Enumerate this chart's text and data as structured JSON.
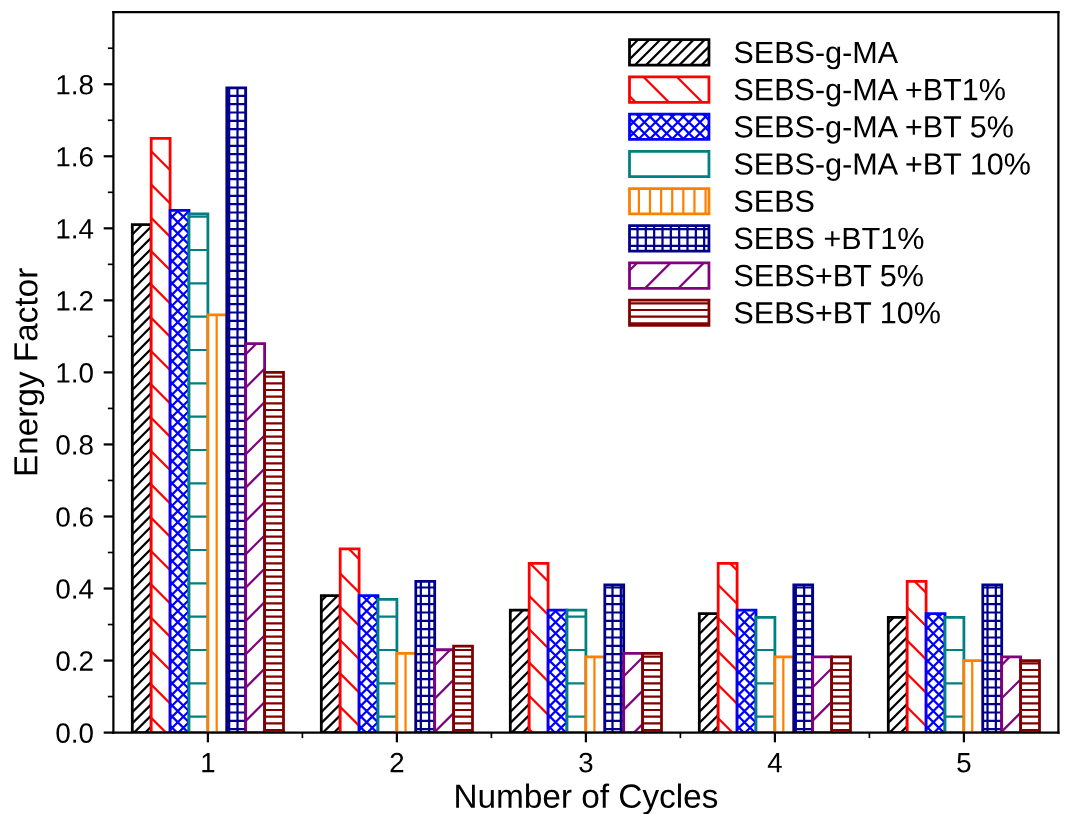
{
  "chart_data": {
    "type": "bar",
    "xlabel": "Number of Cycles",
    "ylabel": "Energy Factor",
    "categories": [
      "1",
      "2",
      "3",
      "4",
      "5"
    ],
    "series": [
      {
        "name": "SEBS-g-MA",
        "color": "#000000",
        "values": [
          1.41,
          0.38,
          0.34,
          0.33,
          0.32
        ]
      },
      {
        "name": "SEBS-g-MA +BT1%",
        "color": "#ff0000",
        "values": [
          1.65,
          0.51,
          0.47,
          0.47,
          0.42
        ]
      },
      {
        "name": "SEBS-g-MA +BT 5%",
        "color": "#0000ff",
        "values": [
          1.45,
          0.38,
          0.34,
          0.34,
          0.33
        ]
      },
      {
        "name": "SEBS-g-MA +BT 10%",
        "color": "#008080",
        "values": [
          1.44,
          0.37,
          0.34,
          0.32,
          0.32
        ]
      },
      {
        "name": "SEBS",
        "color": "#ff8000",
        "values": [
          1.16,
          0.22,
          0.21,
          0.21,
          0.2
        ]
      },
      {
        "name": "SEBS +BT1%",
        "color": "#00008b",
        "values": [
          1.79,
          0.42,
          0.41,
          0.41,
          0.41
        ]
      },
      {
        "name": "SEBS+BT 5%",
        "color": "#800080",
        "values": [
          1.08,
          0.23,
          0.22,
          0.21,
          0.21
        ]
      },
      {
        "name": "SEBS+BT 10%",
        "color": "#800000",
        "values": [
          1.0,
          0.24,
          0.22,
          0.21,
          0.2
        ]
      }
    ],
    "ylim": [
      0,
      2.0
    ],
    "yticks": [
      {
        "value": 0,
        "label": "0.0"
      },
      {
        "value": 0.2,
        "label": "0.2"
      },
      {
        "value": 0.4,
        "label": "0.4"
      },
      {
        "value": 0.6,
        "label": "0.6"
      },
      {
        "value": 0.8,
        "label": "0.8"
      },
      {
        "value": 1.0,
        "label": "1.0"
      },
      {
        "value": 1.2,
        "label": "1.2"
      },
      {
        "value": 1.4,
        "label": "1.4"
      },
      {
        "value": 1.6,
        "label": "1.6"
      },
      {
        "value": 1.8,
        "label": "1.8"
      }
    ],
    "legend": "top right",
    "grid": false
  }
}
